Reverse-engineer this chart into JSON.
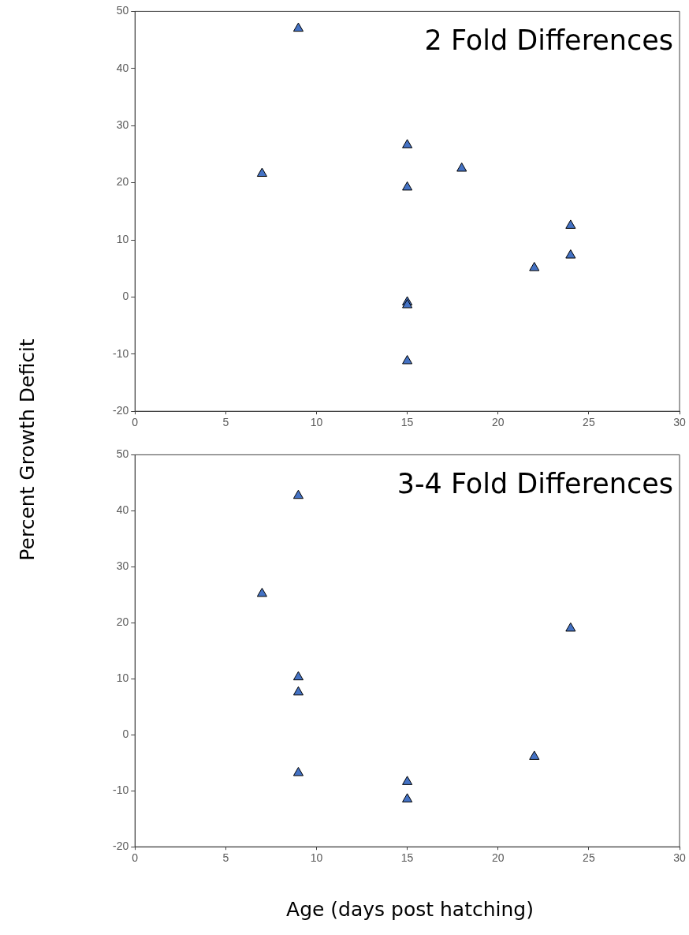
{
  "chart_data": [
    {
      "type": "scatter",
      "ylabel": "Percent Growth Deficit",
      "annotations": [
        "2 Fold Differences"
      ],
      "series": [
        {
          "color": "#4472c4",
          "x": [
            9,
            7,
            15,
            15,
            18,
            15,
            15,
            15,
            22,
            24,
            24
          ],
          "values": [
            47,
            21.6,
            26.6,
            19.2,
            22.5,
            -0.9,
            -1.4,
            -11.2,
            5.1,
            12.5,
            7.3
          ]
        }
      ],
      "xlim": [
        0,
        30
      ],
      "xticks": [
        0,
        5,
        10,
        15,
        20,
        25,
        30
      ],
      "ylim": [
        -20,
        50
      ],
      "yticks": [
        -20,
        -10,
        0,
        10,
        20,
        30,
        40,
        50
      ],
      "grid": false,
      "legend": false,
      "marker": "triangle"
    },
    {
      "type": "scatter",
      "xlabel": "Age (days post hatching)",
      "annotations": [
        "3-4 Fold Differences"
      ],
      "series": [
        {
          "color": "#4472c4",
          "x": [
            9,
            7,
            9,
            9,
            9,
            15,
            15,
            22,
            24
          ],
          "values": [
            42.7,
            25.2,
            10.3,
            7.6,
            -6.8,
            -8.4,
            -11.5,
            -3.9,
            19
          ]
        }
      ],
      "xlim": [
        0,
        30
      ],
      "xticks": [
        0,
        5,
        10,
        15,
        20,
        25,
        30
      ],
      "ylim": [
        -20,
        50
      ],
      "yticks": [
        -20,
        -10,
        0,
        10,
        20,
        30,
        40,
        50
      ],
      "grid": false,
      "legend": false,
      "marker": "triangle"
    }
  ]
}
